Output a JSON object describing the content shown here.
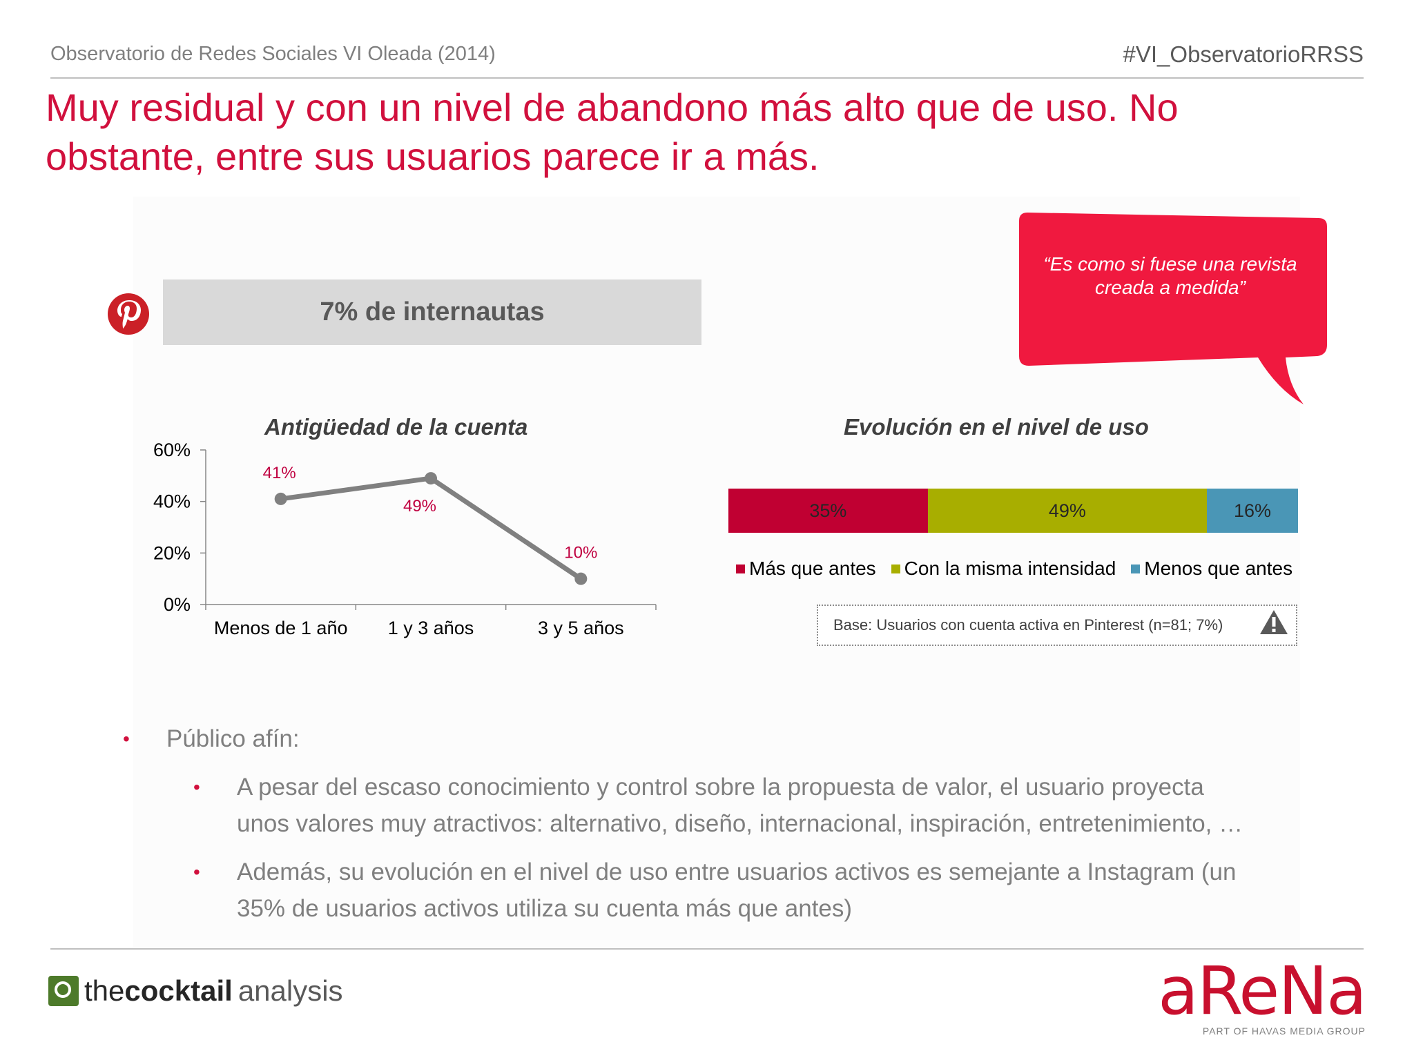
{
  "header": {
    "source": "Observatorio de Redes Sociales VI Oleada (2014)",
    "hashtag": "#VI_ObservatorioRRSS",
    "headline": "Muy residual y con un nivel de abandono más alto que de uso. No obstante, entre sus usuarios parece ir a más."
  },
  "banner": {
    "text": "7% de internautas",
    "icon": "pinterest-icon"
  },
  "quote": {
    "text": "“Es como si fuese una revista creada a medida”"
  },
  "chart_data": [
    {
      "type": "line",
      "title": "Antigüedad de la cuenta",
      "categories": [
        "Menos de 1 año",
        "1 y 3 años",
        "3 y 5 años"
      ],
      "values": [
        41,
        49,
        10
      ],
      "data_labels": [
        "41%",
        "49%",
        "10%"
      ],
      "ylim": [
        0,
        60
      ],
      "yticks": [
        "0%",
        "20%",
        "40%",
        "60%"
      ],
      "ytick_values": [
        0,
        20,
        40,
        60
      ],
      "grid": false,
      "colors": {
        "line": "#808080",
        "labels": "#c00040"
      }
    },
    {
      "type": "bar",
      "orientation": "horizontal-stacked",
      "title": "Evolución en el nivel de uso",
      "series": [
        {
          "name": "Más que antes",
          "value": 35,
          "label": "35%",
          "color": "#c00032"
        },
        {
          "name": "Con la misma intensidad",
          "value": 49,
          "label": "49%",
          "color": "#a8ae00"
        },
        {
          "name": "Menos que antes",
          "value": 16,
          "label": "16%",
          "color": "#4a96b6"
        }
      ],
      "legend": "bottom"
    }
  ],
  "base_note": {
    "text": "Base: Usuarios con cuenta activa en Pinterest (n=81; 7%)",
    "icon": "warning-icon"
  },
  "bullets": {
    "main": "Público afín:",
    "sub": [
      {
        "line1": "A pesar del escaso conocimiento y control sobre la propuesta de valor, el usuario proyecta",
        "line2": "unos valores muy atractivos: alternativo, diseño, internacional, inspiración, entretenimiento, …"
      },
      {
        "line1": "Además, su evolución en el nivel de uso entre usuarios activos es semejante a Instagram (un",
        "line2": "35% de usuarios activos utiliza su cuenta más que antes)"
      }
    ]
  },
  "footer": {
    "cocktail": {
      "part1": "the ",
      "part2": "cocktail",
      "part3": "analysis"
    },
    "arena": {
      "word": "aReNa",
      "sub": "PART OF HAVAS MEDIA GROUP"
    }
  },
  "colors": {
    "accent": "#d1103d",
    "bubble": "#f0193f",
    "banner": "#d9d9d9"
  }
}
